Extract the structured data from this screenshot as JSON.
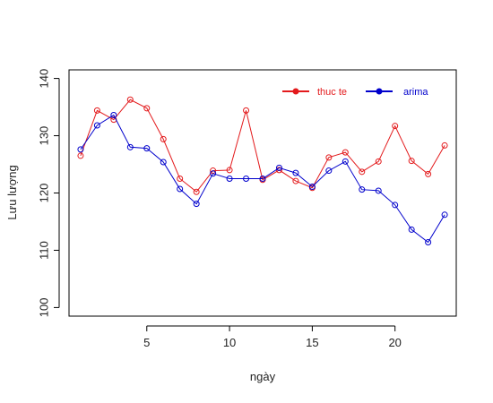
{
  "chart_data": {
    "type": "line",
    "title": "",
    "xlabel": "ngày",
    "ylabel": "Lưu lượng",
    "xlim": [
      0.3,
      23.7
    ],
    "ylim": [
      98.5,
      141.5
    ],
    "x_ticks": [
      5,
      10,
      15,
      20
    ],
    "y_ticks": [
      100,
      110,
      120,
      130,
      140
    ],
    "grid": false,
    "legend_position": "top-right",
    "x": [
      1,
      2,
      3,
      4,
      5,
      6,
      7,
      8,
      9,
      10,
      11,
      12,
      13,
      14,
      15,
      16,
      17,
      18,
      19,
      20,
      21,
      22,
      23
    ],
    "series": [
      {
        "name": "thuc te",
        "color": "#e31a1c",
        "values": [
          126.5,
          134.4,
          132.8,
          136.3,
          134.8,
          129.4,
          122.5,
          120.2,
          123.9,
          124.0,
          134.4,
          122.3,
          124.0,
          122.1,
          120.9,
          126.2,
          127.1,
          123.7,
          125.5,
          131.7,
          125.6,
          123.3,
          128.3
        ]
      },
      {
        "name": "arima",
        "color": "#0000cc",
        "values": [
          127.6,
          131.8,
          133.6,
          128.0,
          127.8,
          125.4,
          120.7,
          118.1,
          123.4,
          122.5,
          122.5,
          122.5,
          124.4,
          123.5,
          121.1,
          123.9,
          125.5,
          120.6,
          120.4,
          117.9,
          113.6,
          111.4,
          116.2
        ]
      }
    ]
  }
}
